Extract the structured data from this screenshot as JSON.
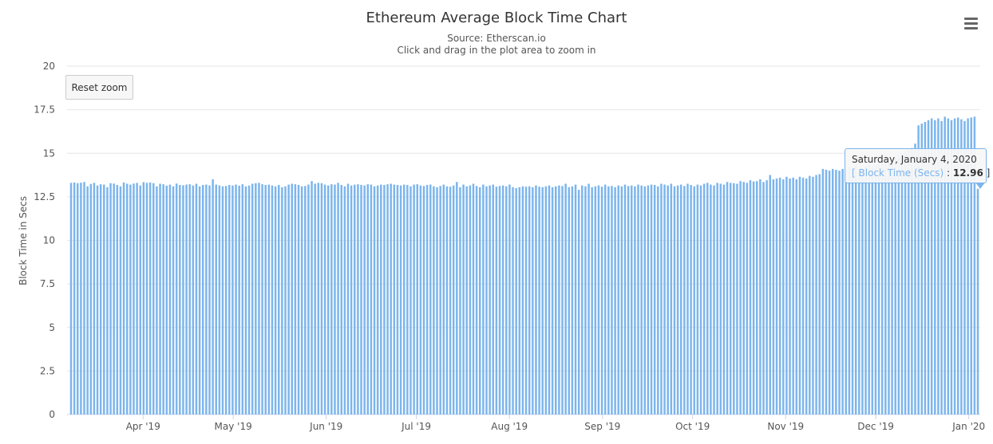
{
  "title": "Ethereum Average Block Time Chart",
  "subtitle": "Source: Etherscan.io",
  "subtitle2": "Click and drag in the plot area to zoom in",
  "reset_zoom_label": "Reset zoom",
  "menu_icon": "hamburger-menu-icon",
  "colors": {
    "series": "#7cb5ec",
    "grid": "#e6e6e6",
    "axis": "#ccd6eb"
  },
  "tooltip": {
    "date": "Saturday, January 4, 2020",
    "open_bracket": "[ ",
    "series_name": "Block Time (Secs)",
    "separator": " : ",
    "value": "12.96",
    "close_bracket": " ]"
  },
  "chart_data": {
    "type": "bar",
    "ylabel": "Block Time in Secs",
    "ylim": [
      0,
      20
    ],
    "yticks": [
      "0",
      "2.5",
      "5",
      "7.5",
      "10",
      "12.5",
      "15",
      "17.5",
      "20"
    ],
    "x_start": "2019-03-08",
    "x_end": "2020-01-04",
    "xticks": [
      {
        "label": "Apr '19",
        "date": "2019-04-01"
      },
      {
        "label": "May '19",
        "date": "2019-05-01"
      },
      {
        "label": "Jun '19",
        "date": "2019-06-01"
      },
      {
        "label": "Jul '19",
        "date": "2019-07-01"
      },
      {
        "label": "Aug '19",
        "date": "2019-08-01"
      },
      {
        "label": "Sep '19",
        "date": "2019-09-01"
      },
      {
        "label": "Oct '19",
        "date": "2019-10-01"
      },
      {
        "label": "Nov '19",
        "date": "2019-11-01"
      },
      {
        "label": "Dec '19",
        "date": "2019-12-01"
      },
      {
        "label": "Jan '20",
        "date": "2020-01-01"
      }
    ],
    "grid": true,
    "legend": "none",
    "series": [
      {
        "values": [
          13.3,
          13.32,
          13.28,
          13.31,
          13.35,
          13.1,
          13.24,
          13.3,
          13.15,
          13.22,
          13.2,
          13.05,
          13.28,
          13.26,
          13.18,
          13.1,
          13.32,
          13.25,
          13.2,
          13.26,
          13.3,
          13.15,
          13.34,
          13.3,
          13.32,
          13.28,
          13.1,
          13.25,
          13.22,
          13.14,
          13.2,
          13.1,
          13.26,
          13.18,
          13.16,
          13.2,
          13.22,
          13.15,
          13.25,
          13.1,
          13.18,
          13.2,
          13.15,
          13.5,
          13.2,
          13.15,
          13.1,
          13.12,
          13.18,
          13.15,
          13.2,
          13.14,
          13.22,
          13.1,
          13.15,
          13.25,
          13.28,
          13.3,
          13.22,
          13.18,
          13.2,
          13.15,
          13.1,
          13.18,
          13.05,
          13.1,
          13.2,
          13.25,
          13.22,
          13.18,
          13.1,
          13.12,
          13.2,
          13.4,
          13.25,
          13.3,
          13.28,
          13.2,
          13.15,
          13.22,
          13.2,
          13.3,
          13.18,
          13.1,
          13.25,
          13.15,
          13.2,
          13.22,
          13.18,
          13.15,
          13.22,
          13.2,
          13.1,
          13.15,
          13.2,
          13.18,
          13.22,
          13.25,
          13.2,
          13.18,
          13.15,
          13.2,
          13.18,
          13.1,
          13.2,
          13.22,
          13.15,
          13.12,
          13.18,
          13.2,
          13.1,
          13.05,
          13.12,
          13.2,
          13.1,
          13.08,
          13.15,
          13.35,
          13.05,
          13.2,
          13.1,
          13.15,
          13.25,
          13.12,
          13.05,
          13.2,
          13.1,
          13.15,
          13.2,
          13.08,
          13.12,
          13.15,
          13.1,
          13.2,
          13.05,
          13.0,
          13.05,
          13.1,
          13.08,
          13.1,
          13.05,
          13.15,
          13.08,
          13.05,
          13.1,
          13.15,
          13.05,
          13.1,
          13.15,
          13.12,
          13.25,
          13.05,
          13.1,
          13.2,
          12.9,
          13.15,
          13.1,
          13.25,
          13.05,
          13.1,
          13.15,
          13.08,
          13.2,
          13.1,
          13.12,
          13.05,
          13.15,
          13.1,
          13.2,
          13.12,
          13.15,
          13.1,
          13.2,
          13.15,
          13.1,
          13.15,
          13.2,
          13.18,
          13.1,
          13.25,
          13.2,
          13.15,
          13.25,
          13.1,
          13.15,
          13.2,
          13.12,
          13.25,
          13.18,
          13.1,
          13.2,
          13.15,
          13.25,
          13.3,
          13.2,
          13.15,
          13.3,
          13.25,
          13.2,
          13.35,
          13.3,
          13.28,
          13.25,
          13.4,
          13.35,
          13.3,
          13.45,
          13.38,
          13.4,
          13.5,
          13.35,
          13.45,
          13.75,
          13.5,
          13.55,
          13.6,
          13.5,
          13.65,
          13.55,
          13.6,
          13.5,
          13.65,
          13.6,
          13.55,
          13.7,
          13.65,
          13.75,
          13.8,
          14.1,
          14.05,
          14.0,
          14.1,
          14.05,
          14.0,
          14.1,
          14.15,
          14.2,
          14.1,
          14.35,
          14.0,
          14.1,
          14.25,
          14.4,
          14.2,
          14.3,
          14.5,
          14.45,
          14.6,
          14.55,
          14.7,
          14.8,
          14.9,
          15.0,
          15.1,
          15.2,
          15.3,
          15.55,
          16.6,
          16.7,
          16.8,
          16.9,
          17.0,
          16.9,
          17.0,
          16.85,
          17.1,
          17.0,
          16.9,
          17.0,
          17.05,
          16.95,
          16.85,
          17.0,
          17.05,
          17.1,
          12.96
        ]
      }
    ]
  }
}
